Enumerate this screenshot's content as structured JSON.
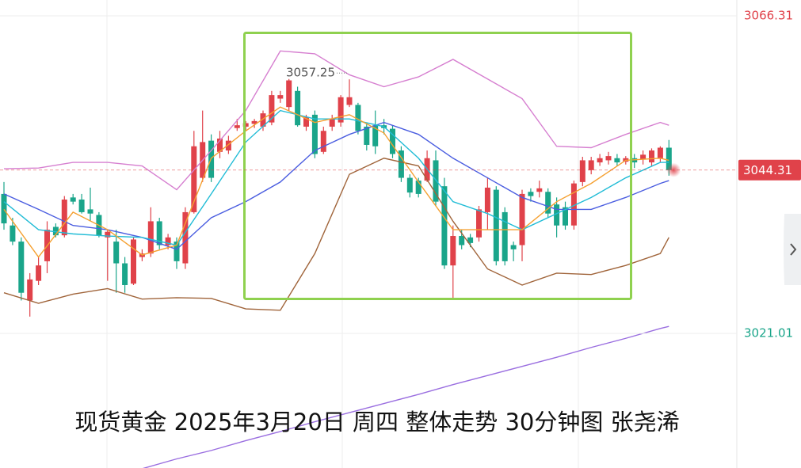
{
  "chart_data": {
    "type": "candlestick",
    "title": "现货黄金 2025年3月20日 周四 整体走势 30分钟图 张尧浠",
    "up_color": "#e0424a",
    "down_color": "#1aa58a",
    "ylim": [
      3001.8,
      3068.57
    ],
    "yticks": [
      3066.31,
      3021.01
    ],
    "ytick_colors": [
      "#e0424a",
      "#1aa58a"
    ],
    "last_price": 3044.31,
    "high_annotation": 3057.25,
    "ohlc": [
      [
        3040.9,
        3042.6,
        3035.8,
        3036.7
      ],
      [
        3036.4,
        3037.5,
        3033.6,
        3034.1
      ],
      [
        3034.1,
        3034.7,
        3025.7,
        3026.8
      ],
      [
        3025.7,
        3029.6,
        3023.4,
        3028.7
      ],
      [
        3028.5,
        3031.9,
        3027.9,
        3030.7
      ],
      [
        3031.3,
        3037.0,
        3029.6,
        3035.8
      ],
      [
        3036.2,
        3036.7,
        3034.7,
        3035.0
      ],
      [
        3035.0,
        3040.6,
        3034.7,
        3040.1
      ],
      [
        3040.4,
        3040.9,
        3039.4,
        3039.8
      ],
      [
        3040.1,
        3040.9,
        3038.1,
        3038.3
      ],
      [
        3038.7,
        3041.8,
        3037.0,
        3038.1
      ],
      [
        3037.9,
        3038.3,
        3034.7,
        3035.0
      ],
      [
        3034.7,
        3035.8,
        3028.5,
        3035.5
      ],
      [
        3034.1,
        3035.8,
        3026.8,
        3031.0
      ],
      [
        3031.0,
        3031.9,
        3026.8,
        3027.9
      ],
      [
        3028.1,
        3034.7,
        3027.9,
        3034.4
      ],
      [
        3031.9,
        3033.0,
        3031.3,
        3032.4
      ],
      [
        3032.4,
        3039.0,
        3031.9,
        3037.0
      ],
      [
        3037.0,
        3037.5,
        3033.0,
        3033.6
      ],
      [
        3033.6,
        3035.2,
        3033.0,
        3034.7
      ],
      [
        3034.1,
        3034.7,
        3030.2,
        3031.3
      ],
      [
        3031.0,
        3039.0,
        3030.2,
        3038.3
      ],
      [
        3038.3,
        3049.9,
        3038.1,
        3047.7
      ],
      [
        3043.2,
        3052.8,
        3042.6,
        3048.3
      ],
      [
        3048.5,
        3049.4,
        3042.6,
        3043.2
      ],
      [
        3046.9,
        3049.9,
        3046.0,
        3048.8
      ],
      [
        3047.1,
        3049.2,
        3046.6,
        3048.5
      ],
      [
        3050.3,
        3051.6,
        3049.9,
        3050.7
      ],
      [
        3050.5,
        3051.3,
        3049.9,
        3051.0
      ],
      [
        3050.9,
        3051.6,
        3050.3,
        3051.3
      ],
      [
        3050.5,
        3052.8,
        3049.9,
        3052.4
      ],
      [
        3051.1,
        3055.6,
        3050.7,
        3055.0
      ],
      [
        3054.5,
        3055.6,
        3053.9,
        3055.0
      ],
      [
        3053.3,
        3057.3,
        3052.8,
        3057.1
      ],
      [
        3055.6,
        3056.2,
        3050.5,
        3050.7
      ],
      [
        3050.5,
        3052.2,
        3049.9,
        3051.9
      ],
      [
        3052.2,
        3052.8,
        3046.0,
        3046.6
      ],
      [
        3046.9,
        3050.5,
        3046.6,
        3049.9
      ],
      [
        3050.5,
        3052.2,
        3049.9,
        3051.6
      ],
      [
        3051.1,
        3055.0,
        3050.5,
        3054.7
      ],
      [
        3053.6,
        3057.25,
        3053.3,
        3054.7
      ],
      [
        3053.6,
        3053.9,
        3049.4,
        3049.9
      ],
      [
        3050.5,
        3051.1,
        3047.1,
        3047.9
      ],
      [
        3050.7,
        3052.8,
        3046.6,
        3047.7
      ],
      [
        3050.7,
        3051.6,
        3049.4,
        3050.3
      ],
      [
        3050.2,
        3050.7,
        3046.0,
        3046.6
      ],
      [
        3047.1,
        3047.7,
        3042.6,
        3043.2
      ],
      [
        3043.2,
        3043.7,
        3040.4,
        3041.1
      ],
      [
        3042.8,
        3043.2,
        3040.4,
        3040.9
      ],
      [
        3042.8,
        3047.1,
        3042.6,
        3046.0
      ],
      [
        3045.7,
        3047.1,
        3039.2,
        3039.8
      ],
      [
        3042.0,
        3043.2,
        3030.2,
        3030.7
      ],
      [
        3030.7,
        3036.4,
        3025.9,
        3034.9
      ],
      [
        3034.9,
        3035.8,
        3033.0,
        3033.6
      ],
      [
        3034.7,
        3035.2,
        3033.3,
        3033.9
      ],
      [
        3034.7,
        3039.2,
        3034.1,
        3038.7
      ],
      [
        3038.3,
        3043.2,
        3035.8,
        3041.8
      ],
      [
        3041.5,
        3042.0,
        3030.7,
        3031.3
      ],
      [
        3038.3,
        3039.0,
        3030.7,
        3031.3
      ],
      [
        3033.6,
        3034.1,
        3031.3,
        3033.0
      ],
      [
        3033.6,
        3041.5,
        3031.3,
        3040.9
      ],
      [
        3041.2,
        3041.7,
        3039.8,
        3040.6
      ],
      [
        3041.2,
        3042.8,
        3040.4,
        3041.7
      ],
      [
        3041.2,
        3041.7,
        3037.5,
        3038.1
      ],
      [
        3039.4,
        3040.4,
        3034.7,
        3036.4
      ],
      [
        3039.0,
        3039.8,
        3035.8,
        3036.4
      ],
      [
        3036.4,
        3042.8,
        3035.8,
        3042.4
      ],
      [
        3042.6,
        3046.2,
        3042.0,
        3045.7
      ],
      [
        3044.3,
        3046.2,
        3043.7,
        3045.7
      ],
      [
        3045.4,
        3046.6,
        3044.9,
        3046.0
      ],
      [
        3045.7,
        3046.9,
        3045.1,
        3046.3
      ],
      [
        3046.0,
        3046.6,
        3044.9,
        3045.4
      ],
      [
        3045.5,
        3046.3,
        3045.1,
        3046.0
      ],
      [
        3046.0,
        3046.6,
        3044.6,
        3045.4
      ],
      [
        3045.8,
        3047.1,
        3045.1,
        3046.5
      ],
      [
        3045.4,
        3047.4,
        3044.9,
        3047.1
      ],
      [
        3046.0,
        3047.7,
        3045.4,
        3047.5
      ],
      [
        3047.5,
        3048.6,
        3043.5,
        3044.31
      ]
    ],
    "line_x": [
      0,
      4,
      8,
      12,
      16,
      20,
      24,
      28,
      32,
      36,
      40,
      44,
      48,
      52,
      56,
      60,
      64,
      68,
      72,
      76,
      77
    ],
    "lines": [
      {
        "color": "#d67fd0",
        "values": [
          3044.5,
          3044.6,
          3045.4,
          3045.4,
          3044.9,
          3041.5,
          3047.1,
          3052.8,
          3061.3,
          3060.9,
          3057.9,
          3056.2,
          3057.6,
          3060.1,
          3057.3,
          3054.5,
          3047.7,
          3047.5,
          3049.4,
          3051.1,
          3050.7
        ]
      },
      {
        "color": "#a0643a",
        "values": [
          3026.8,
          3025.3,
          3026.6,
          3027.4,
          3025.9,
          3026.1,
          3026.0,
          3024.5,
          3024.3,
          3032.4,
          3043.7,
          3046.0,
          3044.9,
          3037.0,
          3030.2,
          3027.9,
          3029.6,
          3029.4,
          3030.7,
          3032.4,
          3034.7
        ]
      },
      {
        "color": "#4a5de0",
        "values": [
          3040.9,
          3038.7,
          3036.4,
          3035.8,
          3034.7,
          3033.0,
          3037.5,
          3039.8,
          3042.6,
          3047.1,
          3049.4,
          3051.1,
          3049.4,
          3046.0,
          3043.2,
          3040.4,
          3038.7,
          3038.7,
          3040.4,
          3042.4,
          3042.8
        ]
      },
      {
        "color": "#21bcd6",
        "values": [
          3039.8,
          3035.8,
          3035.2,
          3034.9,
          3034.7,
          3033.6,
          3040.9,
          3048.3,
          3052.8,
          3051.6,
          3051.6,
          3050.5,
          3046.0,
          3039.8,
          3038.1,
          3035.8,
          3038.1,
          3040.4,
          3043.2,
          3045.4,
          3045.4
        ]
      },
      {
        "color": "#f5a030",
        "values": [
          3038.7,
          3031.9,
          3038.3,
          3035.8,
          3032.2,
          3033.6,
          3046.0,
          3049.9,
          3053.3,
          3051.1,
          3052.2,
          3049.6,
          3042.6,
          3035.8,
          3035.8,
          3035.8,
          3039.8,
          3042.4,
          3045.7,
          3046.0,
          3045.7
        ]
      },
      {
        "color": "#9a6ee0",
        "values": [
          null,
          null,
          null,
          null,
          3001.7,
          3003.1,
          3004.3,
          3005.7,
          3007.0,
          3008.4,
          3009.7,
          3011.0,
          3012.3,
          3013.7,
          3015.0,
          3016.3,
          3017.6,
          3019.0,
          3020.3,
          3021.7,
          3022.0
        ]
      }
    ]
  }
}
